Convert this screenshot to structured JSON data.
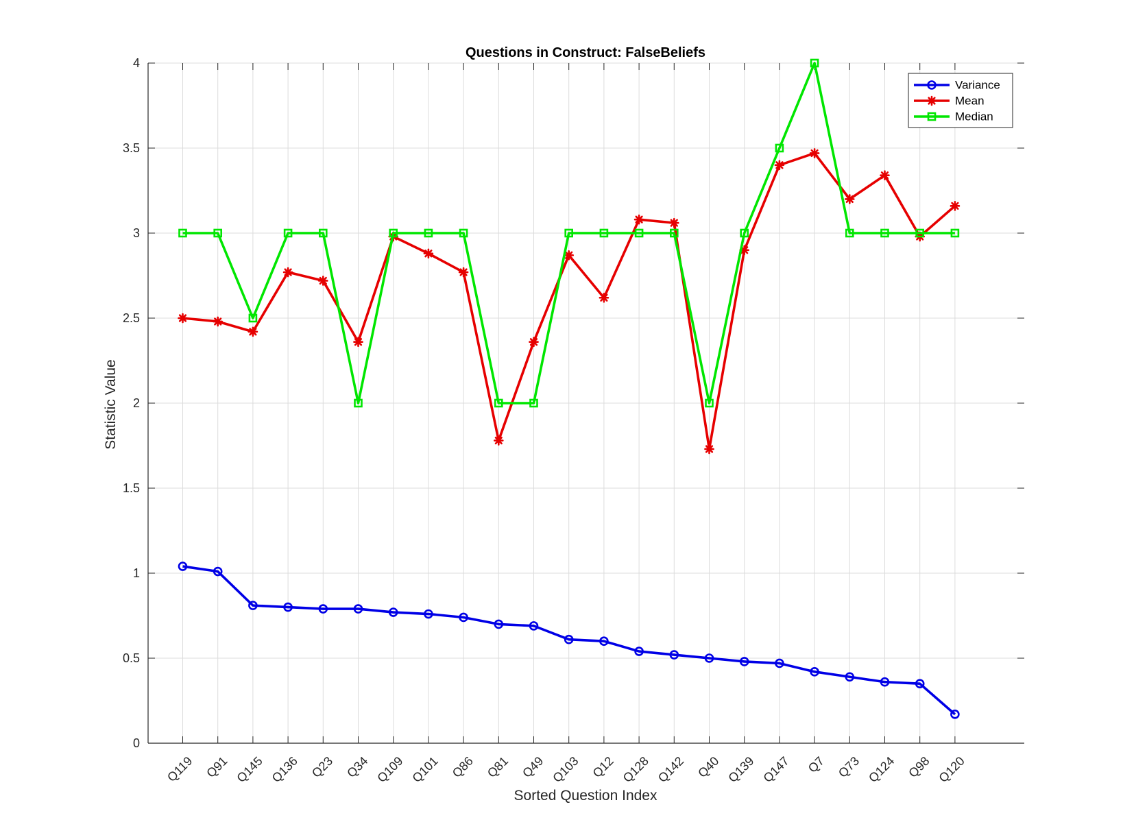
{
  "chart_data": {
    "type": "line",
    "title": "Questions in Construct: FalseBeliefs",
    "xlabel": "Sorted Question Index",
    "ylabel": "Statistic Value",
    "ylim": [
      0,
      4
    ],
    "yticks": [
      0,
      0.5,
      1,
      1.5,
      2,
      2.5,
      3,
      3.5,
      4
    ],
    "ytick_labels": [
      "0",
      "0.5",
      "1",
      "1.5",
      "2",
      "2.5",
      "3",
      "3.5",
      "4"
    ],
    "grid": true,
    "legend_position": "top-right",
    "categories": [
      "Q119",
      "Q91",
      "Q145",
      "Q136",
      "Q23",
      "Q34",
      "Q109",
      "Q101",
      "Q86",
      "Q81",
      "Q49",
      "Q103",
      "Q12",
      "Q128",
      "Q142",
      "Q40",
      "Q139",
      "Q147",
      "Q7",
      "Q73",
      "Q124",
      "Q98",
      "Q120"
    ],
    "series": [
      {
        "name": "Variance",
        "color": "#0000e6",
        "marker": "circle",
        "values": [
          1.04,
          1.01,
          0.81,
          0.8,
          0.79,
          0.79,
          0.77,
          0.76,
          0.74,
          0.7,
          0.69,
          0.61,
          0.6,
          0.54,
          0.52,
          0.5,
          0.48,
          0.47,
          0.42,
          0.39,
          0.36,
          0.35,
          0.17
        ]
      },
      {
        "name": "Mean",
        "color": "#e60000",
        "marker": "asterisk",
        "values": [
          2.5,
          2.48,
          2.42,
          2.77,
          2.72,
          2.36,
          2.98,
          2.88,
          2.77,
          1.78,
          2.36,
          2.87,
          2.62,
          3.08,
          3.06,
          1.73,
          2.9,
          3.4,
          3.47,
          3.2,
          3.34,
          2.98,
          3.16
        ]
      },
      {
        "name": "Median",
        "color": "#00e600",
        "marker": "square",
        "values": [
          3,
          3,
          2.5,
          3,
          3,
          2,
          3,
          3,
          3,
          2,
          2,
          3,
          3,
          3,
          3,
          2,
          3,
          3.5,
          4,
          3,
          3,
          3,
          3
        ]
      }
    ]
  }
}
